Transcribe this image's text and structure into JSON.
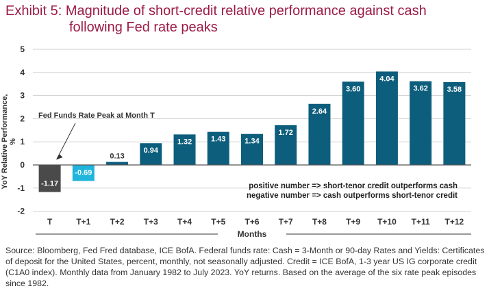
{
  "title_line1": "Exhibit 5: Magnitude of short-credit relative performance against cash",
  "title_line2": "following Fed rate peaks",
  "source_text": "Source: Bloomberg, Fed Fred database, ICE BofA. Federal funds rate: Cash = 3-Month or 90-day Rates and Yields: Certificates of deposit for the United States, percent, monthly, not seasonally adjusted. Credit = ICE BofA, 1-3 year US IG corporate credit (C1A0 index). Monthly data from January 1982 to July 2023. YoY returns. Based on the average of the six rate peak episodes since 1982.",
  "chart_data": {
    "type": "bar",
    "categories": [
      "T",
      "T+1",
      "T+2",
      "T+3",
      "T+4",
      "T+5",
      "T+6",
      "T+7",
      "T+8",
      "T+9",
      "T+10",
      "T+11",
      "T+12"
    ],
    "values": [
      -1.17,
      -0.69,
      0.13,
      0.94,
      1.32,
      1.43,
      1.34,
      1.72,
      2.64,
      3.6,
      4.04,
      3.62,
      3.58
    ],
    "value_labels": [
      "-1.17",
      "-0.69",
      "0.13",
      "0.94",
      "1.32",
      "1.43",
      "1.34",
      "1.72",
      "2.64",
      "3.60",
      "4.04",
      "3.62",
      "3.58"
    ],
    "bar_colors": [
      "#4a4a4a",
      "#1fb5dc",
      "#0d5e7c",
      "#0d5e7c",
      "#0d5e7c",
      "#0d5e7c",
      "#0d5e7c",
      "#0d5e7c",
      "#0d5e7c",
      "#0d5e7c",
      "#0d5e7c",
      "#0d5e7c",
      "#0d5e7c"
    ],
    "xlabel": "Months",
    "ylabel": "YoY Relative Performance, %",
    "ylim": [
      -2,
      5
    ],
    "yticks": [
      5,
      4,
      3,
      2,
      1,
      0,
      -1,
      -2
    ],
    "grid": true,
    "annotation": "Fed Funds Rate Peak at Month T",
    "notes": [
      "positive number => short-tenor credit outperforms cash",
      "negative number => cash outperforms short-tenor credit"
    ]
  }
}
